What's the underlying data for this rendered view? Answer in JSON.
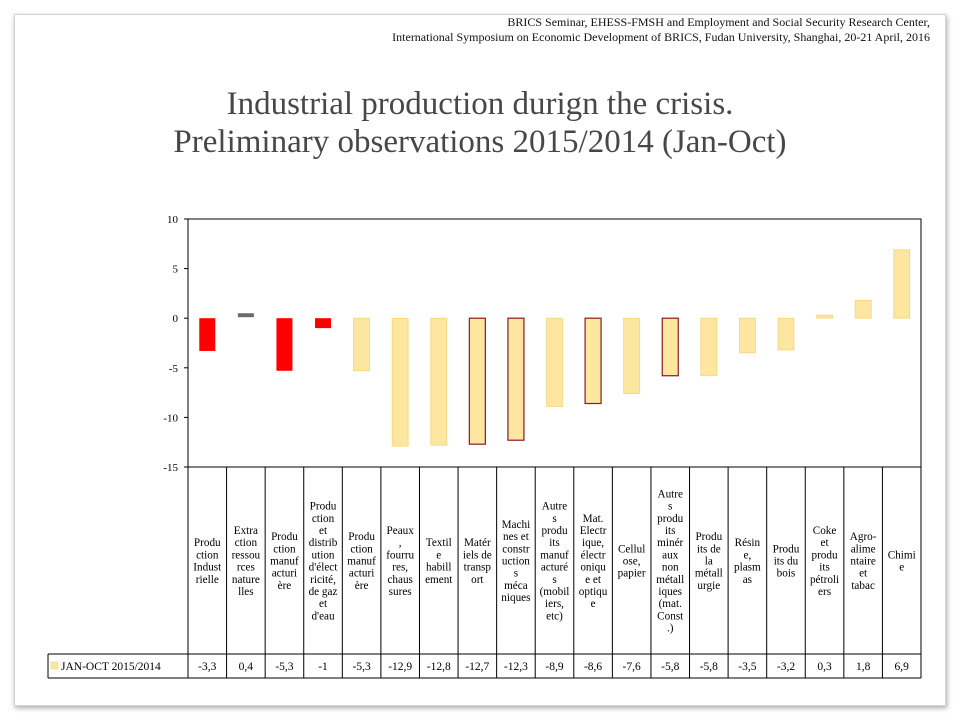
{
  "header": {
    "line1": "BRICS Seminar, EHESS-FMSH and Employment and Social Security Research Center,",
    "line2": "International Symposium on Economic Development of BRICS, Fudan University, Shanghai, 20-21 April, 2016"
  },
  "title": {
    "line1": "Industrial production durign the crisis.",
    "line2": "Preliminary observations 2015/2014 (Jan-Oct)"
  },
  "colors": {
    "red": "#ff0000",
    "yellow": "#fde6a0",
    "yellow_edge": "#f6d57a",
    "outlined_fill": "#fde6a0",
    "outline": "#8b1a1a",
    "gray": "#6b6b6b",
    "grid": "#000000"
  },
  "chart_data": {
    "type": "bar",
    "title": "",
    "xlabel": "",
    "ylabel": "",
    "ylim": [
      -15,
      10
    ],
    "yticks": [
      10,
      5,
      0,
      -5,
      -10,
      -15
    ],
    "ytick_labels": [
      "10",
      "5",
      "0",
      "-5",
      "-10",
      "-15"
    ],
    "grid": false,
    "legend_position": "bottom-left",
    "categories": [
      "Production Industrielle",
      "Extraction ressources naturelles",
      "Production manufacturière",
      "Production et distribution d'électricité, de gaz et d'eau",
      "Production manufacturière",
      "Peaux, fourrures, chaussures",
      "Textile habillement",
      "Matériels de transport",
      "Machines et constructions méca niques",
      "Autres produits manufacturés (mobiliers, etc)",
      "Mat. Electrique, électronique et optique",
      "Cellulose, papier",
      "Autres produits minéraux non métalliques (mat. Const.)",
      "Produits de la métallurgie",
      "Résine, plasmas",
      "Produits du bois",
      "Coke et produits pétroliers",
      "Agro-alimentaire et tabac",
      "Chimie"
    ],
    "category_lines": [
      [
        "Produ",
        "ction",
        "Indust",
        "rielle"
      ],
      [
        "Extra",
        "ction",
        "ressou",
        "rces",
        "nature",
        "lles"
      ],
      [
        "Produ",
        "ction",
        "manuf",
        "acturi",
        "ère"
      ],
      [
        "Produ",
        "ction",
        "et",
        "distrib",
        "ution",
        "d'élect",
        "ricité,",
        "de gaz",
        "et",
        "d'eau"
      ],
      [
        "Produ",
        "ction",
        "manuf",
        "acturi",
        "ère"
      ],
      [
        "Peaux",
        ",",
        "fourru",
        "res,",
        "chaus",
        "sures"
      ],
      [
        "Textil",
        "e",
        "habill",
        "ement"
      ],
      [
        "Matér",
        "iels de",
        "transp",
        "ort"
      ],
      [
        "Machi",
        "nes et",
        "constr",
        "uction",
        "s",
        "méca",
        "niques"
      ],
      [
        "Autre",
        "s",
        "produ",
        "its",
        "manuf",
        "acturé",
        "s",
        "(mobil",
        "iers,",
        "etc)"
      ],
      [
        "Mat.",
        "Electr",
        "ique,",
        "électr",
        "oniqu",
        "e et",
        "optiqu",
        "e"
      ],
      [
        "Cellul",
        "ose,",
        "papier"
      ],
      [
        "Autre",
        "s",
        "produ",
        "its",
        "minér",
        "aux",
        "non",
        "métall",
        "iques",
        "(mat.",
        "Const",
        ".)"
      ],
      [
        "Produ",
        "its de",
        "la",
        "métall",
        "urgie"
      ],
      [
        "Résin",
        "e,",
        "plasm",
        "as"
      ],
      [
        "Produ",
        "its du",
        "bois"
      ],
      [
        "Coke",
        "et",
        "produ",
        "its",
        "pétroli",
        "ers"
      ],
      [
        "Agro-",
        "alime",
        "ntaire",
        "et",
        "tabac"
      ],
      [
        "Chimi",
        "e"
      ]
    ],
    "series": [
      {
        "name": "JAN-OCT 2015/2014",
        "values": [
          -3.3,
          0.4,
          -5.3,
          -1,
          -5.3,
          -12.9,
          -12.8,
          -12.7,
          -12.3,
          -8.9,
          -8.6,
          -7.6,
          -5.8,
          -5.8,
          -3.5,
          -3.2,
          0.3,
          1.8,
          6.9
        ],
        "value_labels": [
          "-3,3",
          "0,4",
          "-5,3",
          "-1",
          "-5,3",
          "-12,9",
          "-12,8",
          "-12,7",
          "-12,3",
          "-8,9",
          "-8,6",
          "-7,6",
          "-5,8",
          "-5,8",
          "-3,5",
          "-3,2",
          "0,3",
          "1,8",
          "6,9"
        ]
      }
    ],
    "bar_styles": [
      "red",
      "gray",
      "red",
      "red",
      "yellow",
      "yellow",
      "yellow",
      "outlined",
      "outlined",
      "yellow",
      "outlined",
      "yellow",
      "outlined",
      "yellow",
      "yellow",
      "yellow",
      "yellow",
      "yellow",
      "yellow"
    ]
  }
}
